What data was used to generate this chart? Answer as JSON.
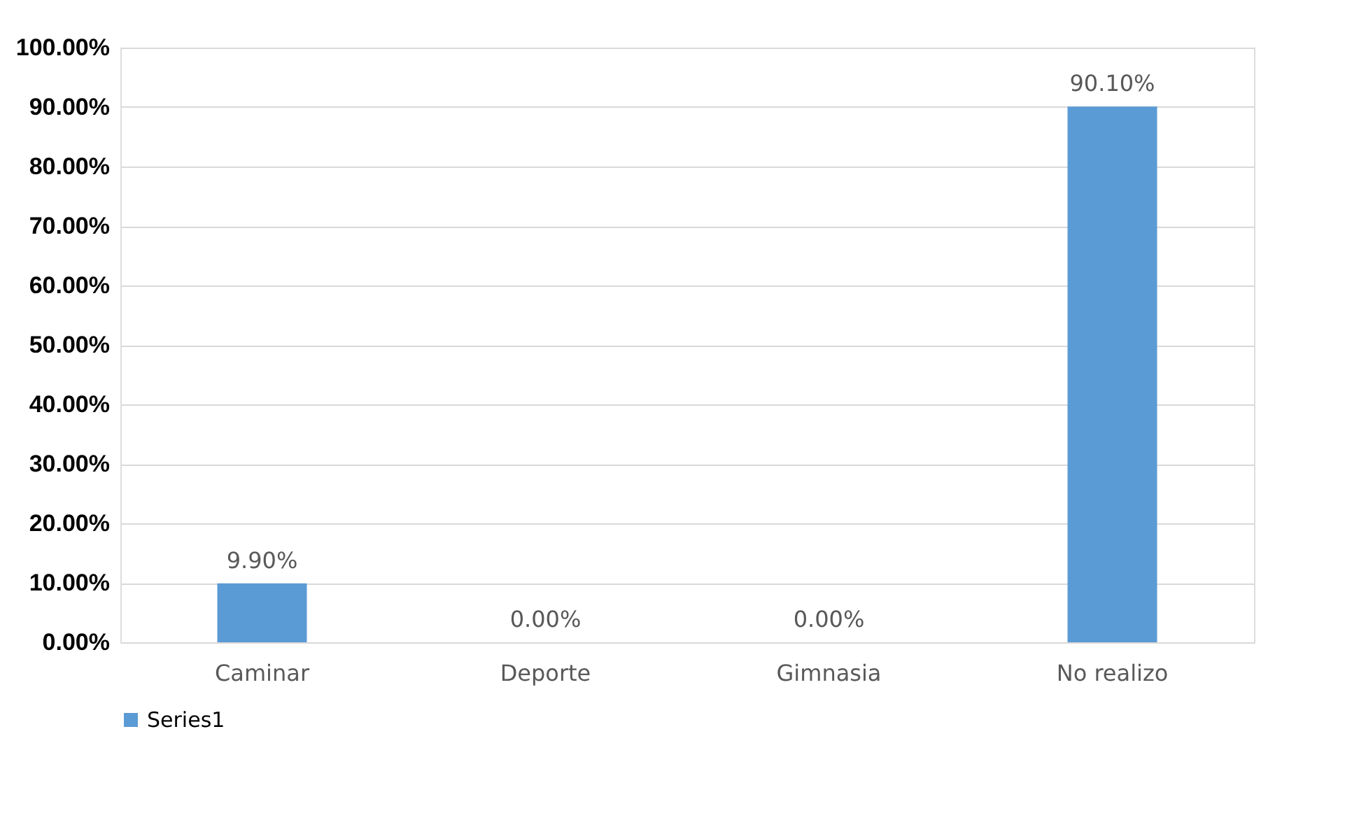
{
  "chart_data": {
    "type": "bar",
    "categories": [
      "Caminar",
      "Deporte",
      "Gimnasia",
      "No realizo"
    ],
    "series": [
      {
        "name": "Series1",
        "color": "#5b9bd5",
        "values": [
          9.9,
          0,
          0,
          90.1
        ],
        "value_labels": [
          "9.90%",
          "0.00%",
          "0.00%",
          "90.10%"
        ]
      }
    ],
    "ylim": [
      0,
      100
    ],
    "yticks": [
      {
        "value": 0,
        "label": "0.00%"
      },
      {
        "value": 10,
        "label": "10.00%"
      },
      {
        "value": 20,
        "label": "20.00%"
      },
      {
        "value": 30,
        "label": "30.00%"
      },
      {
        "value": 40,
        "label": "40.00%"
      },
      {
        "value": 50,
        "label": "50.00%"
      },
      {
        "value": 60,
        "label": "60.00%"
      },
      {
        "value": 70,
        "label": "70.00%"
      },
      {
        "value": 80,
        "label": "80.00%"
      },
      {
        "value": 90,
        "label": "90.00%"
      },
      {
        "value": 100,
        "label": "100.00%"
      }
    ],
    "grid": "y",
    "legend": "bottom"
  }
}
